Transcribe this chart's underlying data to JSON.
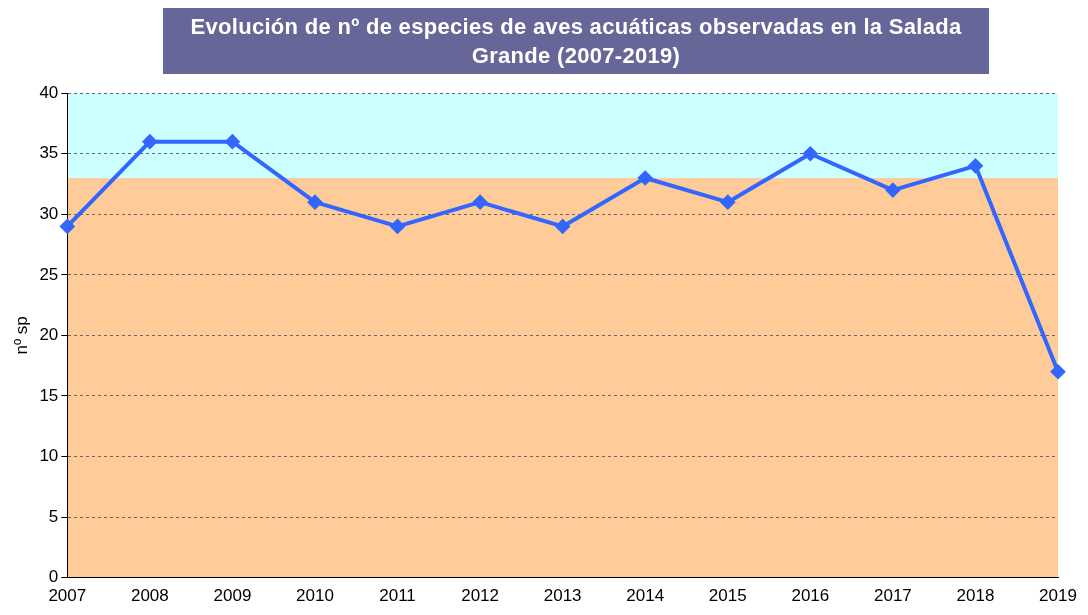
{
  "chart_data": {
    "type": "line",
    "title": "Evolución de nº de especies de aves acuáticas observadas en la Salada Grande (2007-2019)",
    "ylabel": "nº sp",
    "categories": [
      "2007",
      "2008",
      "2009",
      "2010",
      "2011",
      "2012",
      "2013",
      "2014",
      "2015",
      "2016",
      "2017",
      "2018",
      "2019"
    ],
    "series": [
      {
        "color": "#3366ff",
        "values": [
          29,
          36,
          36,
          31,
          29,
          31,
          29,
          33,
          31,
          35,
          32,
          34,
          17
        ]
      }
    ],
    "ylim": [
      0,
      40
    ],
    "yticks": [
      0,
      5,
      10,
      15,
      20,
      25,
      30,
      35,
      40
    ],
    "grid": "y",
    "marker": "diamond",
    "line_style": "solid",
    "legend": false,
    "bands": [
      {
        "axis": "y",
        "from": 0,
        "to": 33,
        "color": "#ffcc99"
      },
      {
        "axis": "y",
        "from": 33,
        "to": 40,
        "color": "#ccffff"
      }
    ]
  }
}
